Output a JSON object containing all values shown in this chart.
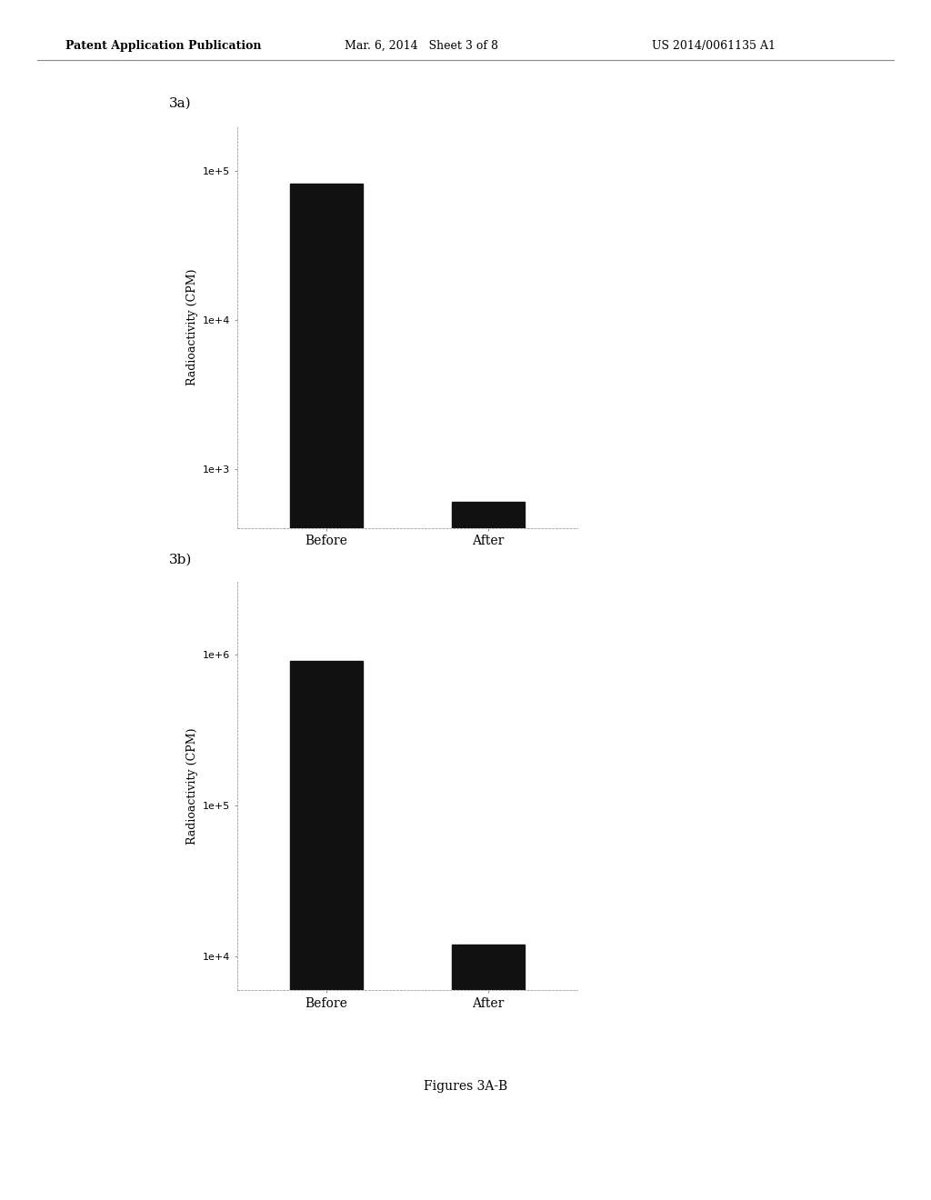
{
  "panel_a": {
    "label": "3a)",
    "categories": [
      "Before",
      "After"
    ],
    "values": [
      82000,
      600
    ],
    "ylim": [
      400,
      200000
    ],
    "yticks": [
      1000,
      10000,
      100000
    ],
    "ytick_labels": [
      "1e+3",
      "1e+4",
      "1e+5"
    ],
    "ylabel": "Radioactivity (CPM)",
    "bar_color": "#111111",
    "bar_width": 0.45
  },
  "panel_b": {
    "label": "3b)",
    "categories": [
      "Before",
      "After"
    ],
    "values": [
      900000,
      12000
    ],
    "ylim": [
      6000,
      3000000
    ],
    "yticks": [
      10000,
      100000,
      1000000
    ],
    "ytick_labels": [
      "1e+4",
      "1e+5",
      "1e+6"
    ],
    "ylabel": "Radioactivity (CPM)",
    "bar_color": "#111111",
    "bar_width": 0.45
  },
  "figure_label": "Figures 3A-B",
  "header_left": "Patent Application Publication",
  "header_center": "Mar. 6, 2014   Sheet 3 of 8",
  "header_right": "US 2014/0061135 A1",
  "background_color": "#ffffff",
  "text_color": "#000000",
  "font_size_axis_label": 9,
  "font_size_tick": 8,
  "font_size_header": 9,
  "font_size_figure_label": 10,
  "font_size_panel_label": 11
}
